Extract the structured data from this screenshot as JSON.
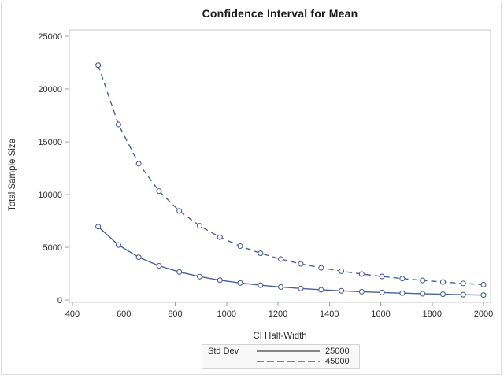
{
  "window": {
    "background": "#ffffff",
    "border_color": "#dcdcdc"
  },
  "chart_data": {
    "type": "line",
    "title": "Confidence Interval for Mean",
    "xlabel": "CI Half-Width",
    "ylabel": "Total Sample Size",
    "xlim": [
      400,
      2000
    ],
    "ylim": [
      0,
      25000
    ],
    "x_ticks": [
      400,
      600,
      800,
      1000,
      1200,
      1400,
      1600,
      1800,
      2000
    ],
    "y_ticks": [
      0,
      5000,
      10000,
      15000,
      20000,
      25000
    ],
    "grid": false,
    "legend": {
      "title": "Std Dev",
      "position": "bottom",
      "entries": [
        "25000",
        "45000"
      ]
    },
    "x": [
      500,
      579,
      658,
      737,
      816,
      895,
      974,
      1053,
      1132,
      1211,
      1289,
      1368,
      1447,
      1526,
      1605,
      1684,
      1763,
      1842,
      1921,
      2000
    ],
    "series": [
      {
        "name": "25000",
        "line_style": "solid",
        "marker": "circle",
        "values": [
          6957,
          5212,
          4054,
          3246,
          2660,
          2221,
          1883,
          1618,
          1407,
          1234,
          1093,
          974,
          875,
          790,
          717,
          654,
          600,
          552,
          509,
          472
        ]
      },
      {
        "name": "45000",
        "line_style": "dashed",
        "marker": "circle",
        "values": [
          22262,
          16645,
          12922,
          10327,
          8445,
          7038,
          5957,
          5110,
          4432,
          3883,
          3430,
          3053,
          2736,
          2466,
          2235,
          2035,
          1862,
          1710,
          1576,
          1457
        ]
      }
    ],
    "colors": {
      "series_line": "#4a5f9c",
      "marker_fill": "#ffffff",
      "frame": "#c4c8cc",
      "tick": "#9aa0a6",
      "tick_label": "#2e2e2e",
      "title": "#1a1a1a",
      "legend_border": "#d4d4d4",
      "legend_fill": "#f8f8f8",
      "legend_sample": "#3f3f3f"
    }
  }
}
